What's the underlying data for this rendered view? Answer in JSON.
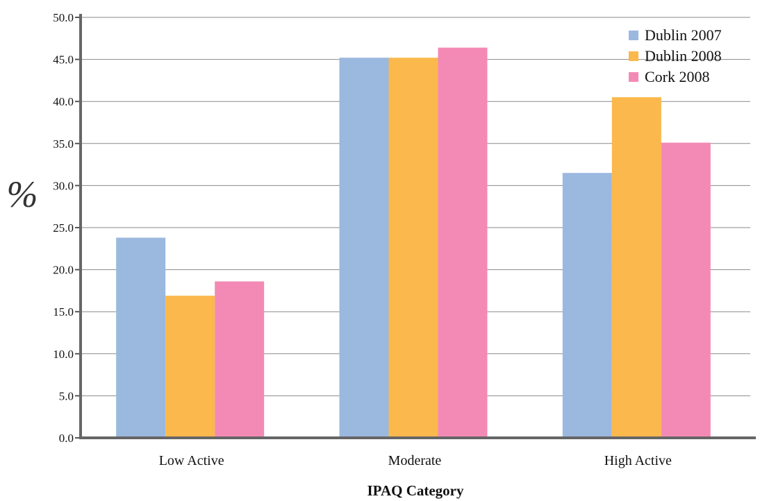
{
  "chart_data": {
    "type": "bar",
    "title": "",
    "xlabel": "IPAQ Category",
    "ylabel": "%",
    "categories": [
      "Low Active",
      "Moderate",
      "High Active"
    ],
    "series": [
      {
        "name": "Dublin 2007",
        "values": [
          23.8,
          45.2,
          31.5
        ],
        "color": "#9bb8df"
      },
      {
        "name": "Dublin 2008",
        "values": [
          16.9,
          45.2,
          40.5
        ],
        "color": "#fbb84c"
      },
      {
        "name": "Cork 2008",
        "values": [
          18.6,
          46.4,
          35.1
        ],
        "color": "#f38ab6"
      }
    ],
    "ylim": [
      0,
      50
    ],
    "yticks": [
      "0.0",
      "5.0",
      "10.0",
      "15.0",
      "20.0",
      "25.0",
      "30.0",
      "35.0",
      "40.0",
      "45.0",
      "50.0"
    ],
    "grid": true,
    "legend_position": "top-right"
  }
}
